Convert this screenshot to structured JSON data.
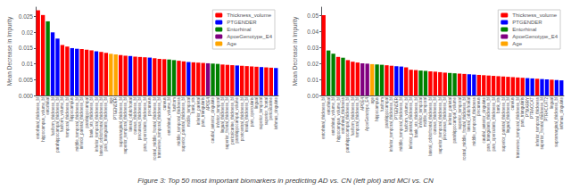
{
  "title": "Figure 3: Top 50 most important biomarkers in predicting AD vs. CN (left plot) and MCI vs. CN",
  "chart_data": [
    {
      "type": "bar",
      "ylabel": "Mean Decrease in Impurity",
      "categories": [
        "entorhinal_thickness_bl",
        "hippocampus_volume_bl",
        "entorhinal",
        "fusiform_thickness_bl",
        "parahippocampal_thickness_bl",
        "fusiform_volume_bl",
        "temporal_thickness_bl",
        "hippocampus",
        "middle_temporal_thickness_bl",
        "inferior_parietal_thickness_bl",
        "parahippocampal",
        "bank_sts_thickness_bl",
        "inferior_temporal_thickness_bl",
        "lateral_orbitofrontal_thickness_bl",
        "pars_triangularis_thickness_bl",
        "age",
        "PTGENDER",
        "supramarginal_thickness_bl",
        "superior_temporal_thickness_bl",
        "lateral_orbitofrontal",
        "cuneus_thickness_bl",
        "precuneus_thickness_bl",
        "pars_opercularis_thickness_bl",
        "precuneus",
        "rostral_middle_frontal_thickness_bl",
        "transverse_temporal_thickness_bl",
        "cuneus",
        "entorhinal_volume_bl",
        "fusiform",
        "middle_temporal_thickness",
        "superior_parietal_thickness_bl",
        "middle_temporal",
        "bank_sts",
        "inferior_parietal",
        "pars_triangularis",
        "APOE4",
        "caudal_anterior_cingulate",
        "inferior_temporal",
        "lingual_thickness_bl",
        "superior_frontal_thickness_bl",
        "pericalcarine_thickness_bl",
        "parahippocampal_volume",
        "postcentral_thickness_bl",
        "insula_thickness_bl",
        "pars_opercularis",
        "lingual",
        "superior_temporal",
        "superior_frontal",
        "pericalcarine",
        "isthmus_cingulate"
      ],
      "series": [
        {
          "name": "Thickness_volume",
          "color": "#ff0000",
          "values": [
            0.027,
            0.0255,
            null,
            null,
            null,
            0.016,
            0.0155,
            null,
            null,
            0.0147,
            0.0145,
            0.0143,
            null,
            0.0138,
            0.0135,
            null,
            null,
            0.0128,
            0.0126,
            null,
            0.0123,
            0.0122,
            0.0121,
            null,
            0.0118,
            0.0116,
            0.0115,
            null,
            null,
            0.011,
            0.0108,
            null,
            0.0105,
            0.0104,
            0.0103,
            null,
            null,
            null,
            0.0098,
            0.0097,
            0.0096,
            null,
            0.0094,
            0.0093,
            0.0092,
            0.0091,
            null,
            0.0089,
            0.0088,
            null
          ]
        },
        {
          "name": "PTGENDER",
          "color": "#0000ff",
          "values": [
            null,
            null,
            null,
            0.02,
            0.018,
            null,
            null,
            0.015,
            0.0148,
            null,
            null,
            null,
            0.014,
            null,
            null,
            null,
            null,
            null,
            null,
            0.0125,
            null,
            null,
            null,
            0.012,
            null,
            null,
            null,
            null,
            null,
            null,
            null,
            0.0106,
            null,
            null,
            null,
            null,
            null,
            null,
            null,
            null,
            null,
            0.0095,
            null,
            null,
            null,
            null,
            0.009,
            null,
            null,
            0.0087
          ]
        },
        {
          "name": "Entorhinal",
          "color": "#008000",
          "values": [
            null,
            null,
            0.0235,
            null,
            null,
            null,
            null,
            null,
            null,
            null,
            null,
            null,
            null,
            null,
            null,
            null,
            null,
            null,
            null,
            null,
            null,
            null,
            null,
            null,
            null,
            null,
            null,
            0.0114,
            0.0112,
            null,
            null,
            null,
            null,
            null,
            null,
            null,
            0.0101,
            0.01,
            null,
            null,
            null,
            null,
            null,
            null,
            null,
            null,
            null,
            null,
            null,
            null
          ]
        },
        {
          "name": "ApoeGenotype_E4",
          "color": "#800080",
          "values": [
            null,
            null,
            null,
            null,
            null,
            null,
            null,
            null,
            null,
            null,
            null,
            null,
            null,
            null,
            null,
            null,
            null,
            null,
            null,
            null,
            null,
            null,
            null,
            null,
            null,
            null,
            null,
            null,
            null,
            null,
            null,
            null,
            null,
            null,
            null,
            0.0102,
            null,
            null,
            null,
            null,
            null,
            null,
            null,
            null,
            null,
            null,
            null,
            null,
            null,
            null
          ]
        },
        {
          "name": "Age",
          "color": "#ffa500",
          "values": [
            null,
            null,
            null,
            null,
            null,
            null,
            null,
            null,
            null,
            null,
            null,
            null,
            null,
            null,
            null,
            0.0132,
            0.013,
            null,
            null,
            null,
            null,
            null,
            null,
            null,
            null,
            null,
            null,
            null,
            null,
            null,
            null,
            null,
            null,
            null,
            null,
            null,
            null,
            null,
            null,
            null,
            null,
            null,
            null,
            null,
            null,
            null,
            null,
            null,
            null,
            null
          ]
        }
      ],
      "ylim": [
        0,
        0.028
      ],
      "yticks": [
        {
          "value": 0,
          "label": "0.000"
        },
        0.005,
        0.01,
        0.015,
        0.02,
        0.025
      ],
      "grid": false,
      "legend": "upper right"
    },
    {
      "type": "bar",
      "ylabel": "Mean Decrease in Impurity",
      "categories": [
        "entorhinal_thickness_bl",
        "entorhinal",
        "entorhinal_volume_bl",
        "hippocampus_volume_bl",
        "entorhinal_thickness",
        "parahippocampal_thickness_bl",
        "fusiform_thickness_bl",
        "temporal_thickness_bl",
        "APOE4",
        "ApoeGenotype_E4",
        "age",
        "hippocampus",
        "fusiform",
        "parahippocampal",
        "inferior_temporal_thickness_bl",
        "PTGENDER",
        "middle_temporal_thickness_bl",
        "fusiform_volume_bl",
        "inferior_parietal_thickness_bl",
        "bank_sts_thickness_bl",
        "inferior_temporal",
        "middle_temporal",
        "lateral_orbitofrontal_thickness_bl",
        "cuneus_thickness_bl",
        "superior_temporal_thickness_bl",
        "precuneus_thickness_bl",
        "inferior_parietal",
        "parahippocampal_volume",
        "superior_temporal",
        "rostral_middle_frontal_thickness_bl",
        "lateral_orbitofrontal",
        "middle_temporal_thickness",
        "precuneus",
        "caudal_anterior_cingulate",
        "pars_triangularis_thickness_bl",
        "pars_opercularis_thickness_bl",
        "bank_sts",
        "superior_parietal_thickness_bl",
        "lingual_thickness_bl",
        "cuneus",
        "transverse_temporal_thickness_bl",
        "pars_triangularis",
        "PTMARRY",
        "PTRACCAT",
        "inferior_temporal_thickness",
        "superior_frontal_thickness_bl",
        "PTRACCAT2",
        "lingual",
        "supramarginal_thickness_bl",
        "isthmus_cingulate"
      ],
      "series": [
        {
          "name": "Thickness_volume",
          "color": "#ff0000",
          "values": [
            0.05,
            null,
            null,
            0.024,
            null,
            0.022,
            0.021,
            0.0205,
            null,
            null,
            null,
            null,
            null,
            0.0188,
            0.0185,
            null,
            null,
            0.0175,
            0.016,
            0.0158,
            null,
            null,
            0.015,
            0.0148,
            0.0145,
            0.0142,
            null,
            null,
            0.0136,
            0.0134,
            null,
            null,
            0.0128,
            0.0126,
            0.0124,
            0.0122,
            0.012,
            0.0118,
            0.0116,
            0.0114,
            0.0112,
            0.011,
            null,
            null,
            0.0104,
            null,
            null,
            0.0098,
            null,
            null
          ]
        },
        {
          "name": "PTGENDER",
          "color": "#0000ff",
          "values": [
            null,
            null,
            null,
            null,
            null,
            null,
            null,
            null,
            null,
            null,
            null,
            null,
            null,
            null,
            null,
            0.0182,
            0.018,
            null,
            null,
            null,
            null,
            null,
            null,
            null,
            null,
            null,
            null,
            null,
            null,
            null,
            0.0132,
            0.013,
            null,
            null,
            null,
            null,
            null,
            null,
            null,
            null,
            null,
            null,
            0.0108,
            0.0106,
            null,
            0.0102,
            0.01,
            null,
            0.0096,
            0.0094
          ]
        },
        {
          "name": "Entorhinal",
          "color": "#008000",
          "values": [
            null,
            0.028,
            0.026,
            null,
            0.0235,
            null,
            null,
            null,
            null,
            null,
            null,
            0.0193,
            0.0191,
            null,
            null,
            null,
            null,
            null,
            null,
            null,
            0.0155,
            0.0153,
            null,
            null,
            null,
            null,
            0.014,
            0.0138,
            null,
            null,
            null,
            null,
            null,
            null,
            null,
            null,
            null,
            null,
            null,
            null,
            null,
            null,
            null,
            null,
            null,
            null,
            null,
            null,
            null,
            null
          ]
        },
        {
          "name": "ApoeGenotype_E4",
          "color": "#800080",
          "values": [
            null,
            null,
            null,
            null,
            null,
            null,
            null,
            null,
            0.02,
            0.0198,
            null,
            null,
            null,
            null,
            null,
            null,
            null,
            null,
            null,
            null,
            null,
            null,
            null,
            null,
            null,
            null,
            null,
            null,
            null,
            null,
            null,
            null,
            null,
            null,
            null,
            null,
            null,
            null,
            null,
            null,
            null,
            null,
            null,
            null,
            null,
            null,
            null,
            null,
            null,
            null
          ]
        },
        {
          "name": "Age",
          "color": "#ffa500",
          "values": [
            null,
            null,
            null,
            null,
            null,
            null,
            null,
            null,
            null,
            null,
            0.0195,
            null,
            null,
            null,
            null,
            null,
            null,
            null,
            null,
            null,
            null,
            null,
            null,
            null,
            null,
            null,
            null,
            null,
            null,
            null,
            null,
            null,
            null,
            null,
            null,
            null,
            null,
            null,
            null,
            null,
            null,
            null,
            null,
            null,
            null,
            null,
            null,
            null,
            null,
            null
          ]
        }
      ],
      "ylim": [
        0,
        0.055
      ],
      "yticks": [
        {
          "value": 0,
          "label": "0.00"
        },
        0.01,
        0.02,
        0.03,
        0.04,
        0.05
      ],
      "grid": false,
      "legend": "upper right"
    }
  ]
}
